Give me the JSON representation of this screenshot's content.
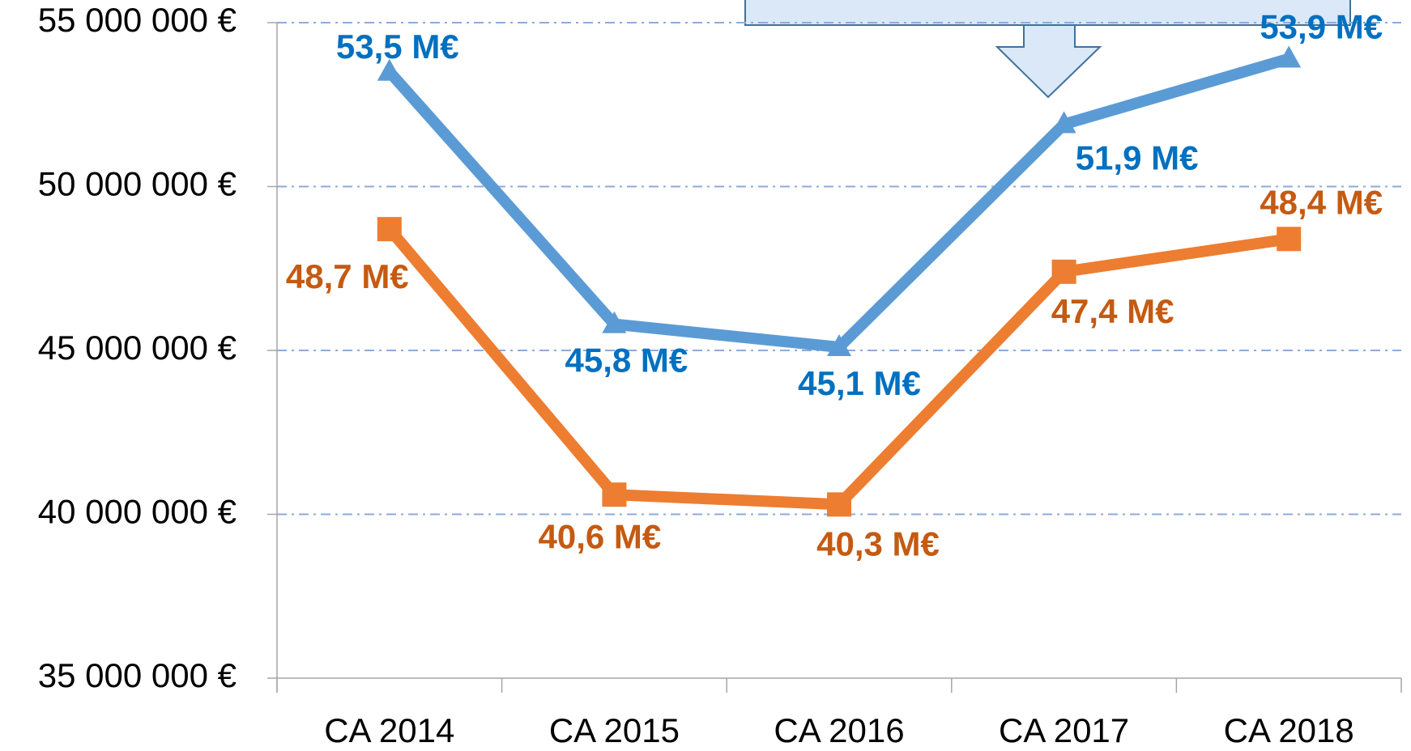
{
  "chart_data": {
    "type": "line",
    "categories": [
      "CA 2014",
      "CA 2015",
      "CA 2016",
      "CA 2017",
      "CA 2018"
    ],
    "series": [
      {
        "color": "#5b9bd5",
        "label_color": "#0070c0",
        "marker": "triangle",
        "values": [
          53500000,
          45800000,
          45100000,
          51900000,
          53900000
        ],
        "value_labels": [
          "53,5 M€",
          "45,8 M€",
          "45,1 M€",
          "51,9 M€",
          "53,9 M€"
        ]
      },
      {
        "color": "#ed7d31",
        "label_color": "#c55a11",
        "marker": "square",
        "values": [
          48700000,
          40600000,
          40300000,
          47400000,
          48400000
        ],
        "value_labels": [
          "48,7 M€",
          "40,6 M€",
          "40,3 M€",
          "47,4 M€",
          "48,4 M€"
        ]
      }
    ],
    "ylim": [
      35000000,
      55000000
    ],
    "yticks": [
      {
        "value": 35000000,
        "label": "35 000 000 €"
      },
      {
        "value": 40000000,
        "label": "40 000 000 €"
      },
      {
        "value": 45000000,
        "label": "45 000 000 €"
      },
      {
        "value": 50000000,
        "label": "50 000 000 €"
      },
      {
        "value": 55000000,
        "label": "55 000 000 €"
      }
    ],
    "grid": true
  }
}
